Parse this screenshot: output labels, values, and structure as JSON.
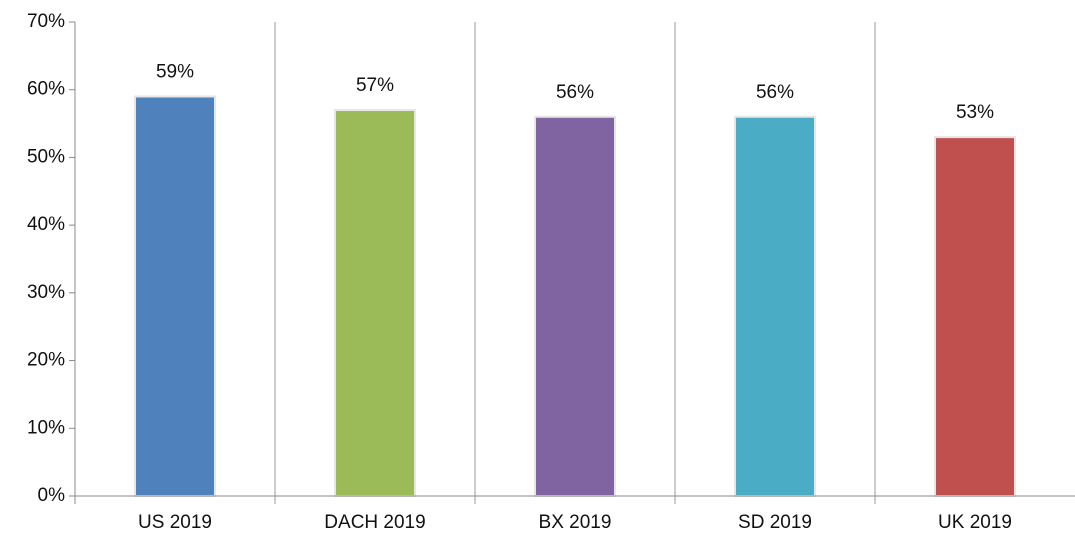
{
  "chart_data": {
    "type": "bar",
    "categories": [
      "US 2019",
      "DACH 2019",
      "BX 2019",
      "SD 2019",
      "UK 2019"
    ],
    "values": [
      59,
      57,
      56,
      56,
      53
    ],
    "value_labels": [
      "59%",
      "57%",
      "56%",
      "56%",
      "53%"
    ],
    "colors": [
      "#4f81bd",
      "#9bbb59",
      "#8064a2",
      "#4bacc6",
      "#c0504d"
    ],
    "ylim": [
      0,
      70
    ],
    "yticks": [
      {
        "value": 0,
        "label": "0%"
      },
      {
        "value": 10,
        "label": "10%"
      },
      {
        "value": 20,
        "label": "20%"
      },
      {
        "value": 30,
        "label": "30%"
      },
      {
        "value": 40,
        "label": "40%"
      },
      {
        "value": 50,
        "label": "50%"
      },
      {
        "value": 60,
        "label": "60%"
      },
      {
        "value": 70,
        "label": "70%"
      }
    ]
  }
}
